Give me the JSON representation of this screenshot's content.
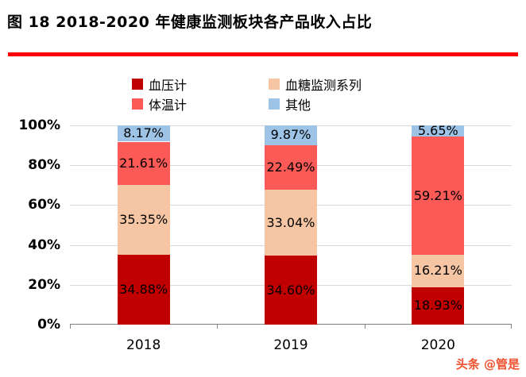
{
  "title": "图 18 2018-2020 年健康监测板块各产品收入占比",
  "watermark": "头条 @管是",
  "colors": {
    "title_rule": "#FE0000",
    "watermark": "#F0502D",
    "grid": "#D9D9D9",
    "axis": "#7F7F7F"
  },
  "chart_data": {
    "type": "bar",
    "stacked": true,
    "units": "percent",
    "title": "图 18 2018-2020 年健康监测板块各产品收入占比",
    "categories": [
      "2018",
      "2019",
      "2020"
    ],
    "series": [
      {
        "name": "血压计",
        "color": "#C00000",
        "values": [
          34.88,
          34.6,
          18.93
        ]
      },
      {
        "name": "血糖监测系列",
        "color": "#F6C6A4",
        "values": [
          35.35,
          33.04,
          16.21
        ]
      },
      {
        "name": "体温计",
        "color": "#FB5A56",
        "values": [
          21.61,
          22.49,
          59.21
        ]
      },
      {
        "name": "其他",
        "color": "#9DC3E6",
        "values": [
          8.17,
          9.87,
          5.65
        ]
      }
    ],
    "ylim": [
      0,
      100
    ],
    "y_tick_labels": [
      "100%",
      "80%",
      "60%",
      "40%",
      "20%",
      "0%"
    ],
    "grid": true,
    "legend_position": "top"
  }
}
